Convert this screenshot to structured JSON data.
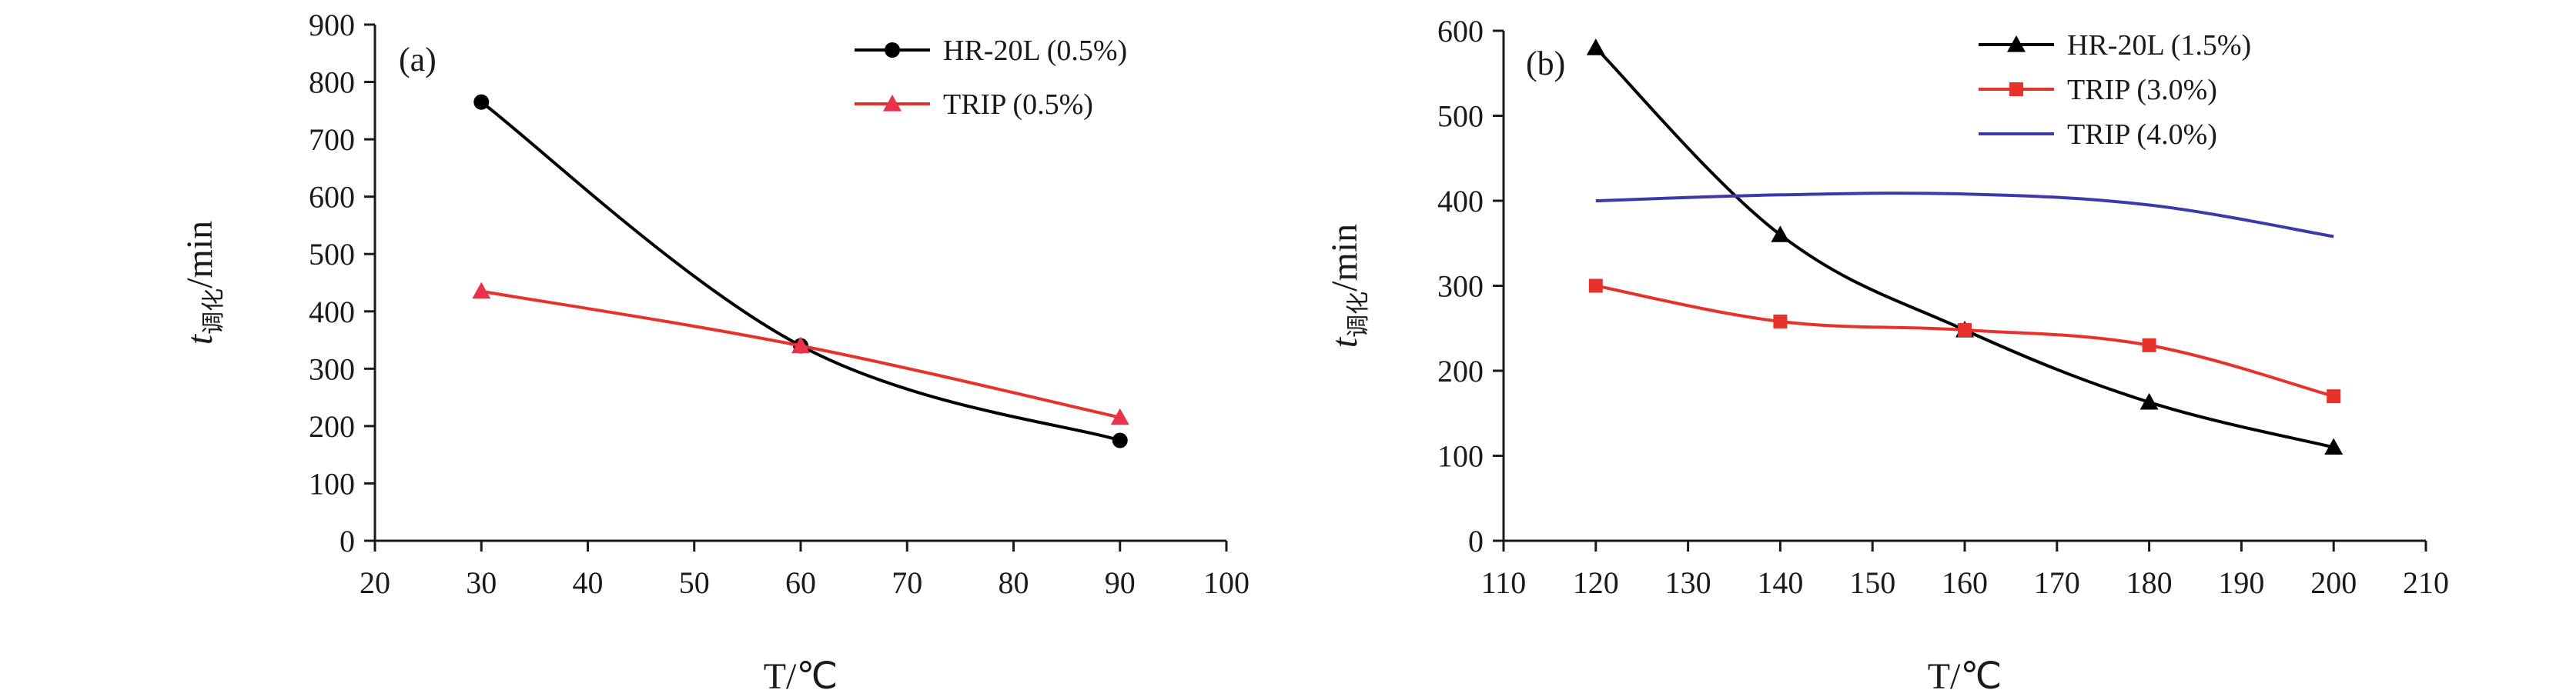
{
  "chart_data": [
    {
      "type": "line",
      "panel_label": "(a)",
      "xlabel": "T/℃",
      "ylabel": {
        "base": "t",
        "subscript": "调化",
        "suffix": "/min"
      },
      "xlim": [
        20,
        100
      ],
      "ylim": [
        0,
        900
      ],
      "x_ticks": [
        20,
        30,
        40,
        50,
        60,
        70,
        80,
        90,
        100
      ],
      "y_ticks": [
        0,
        100,
        200,
        300,
        400,
        500,
        600,
        700,
        800,
        900
      ],
      "grid": false,
      "legend_position": "top-right",
      "series": [
        {
          "name": "HR-20L (0.5%)",
          "color": "#000000",
          "marker": "circle",
          "marker_color": "#000000",
          "x": [
            30,
            60,
            90
          ],
          "y": [
            765,
            340,
            175
          ]
        },
        {
          "name": "TRIP (0.5%)",
          "color": "#e8312b",
          "marker": "triangle",
          "marker_color": "#e8334a",
          "x": [
            30,
            60,
            90
          ],
          "y": [
            435,
            340,
            215
          ]
        }
      ]
    },
    {
      "type": "line",
      "panel_label": "(b)",
      "xlabel": "T/℃",
      "ylabel": {
        "base": "t",
        "subscript": "调化",
        "suffix": "/min"
      },
      "xlim": [
        110,
        210
      ],
      "ylim": [
        0,
        600
      ],
      "x_ticks": [
        110,
        120,
        130,
        140,
        150,
        160,
        170,
        180,
        190,
        200,
        210
      ],
      "y_ticks": [
        0,
        100,
        200,
        300,
        400,
        500,
        600
      ],
      "grid": false,
      "legend_position": "top-right",
      "series": [
        {
          "name": "HR-20L (1.5%)",
          "color": "#000000",
          "marker": "triangle",
          "marker_color": "#000000",
          "x": [
            120,
            140,
            160,
            180,
            200
          ],
          "y": [
            580,
            360,
            248,
            163,
            110
          ]
        },
        {
          "name": "TRIP (3.0%)",
          "color": "#e8312b",
          "marker": "square",
          "marker_color": "#e8312b",
          "x": [
            120,
            140,
            160,
            180,
            200
          ],
          "y": [
            300,
            258,
            248,
            230,
            170
          ]
        },
        {
          "name": "TRIP (4.0%)",
          "color": "#3a3aa8",
          "marker": "none",
          "marker_color": "#3a3aa8",
          "x": [
            120,
            140,
            160,
            180,
            200
          ],
          "y": [
            400,
            407,
            408,
            395,
            358
          ]
        }
      ]
    }
  ]
}
